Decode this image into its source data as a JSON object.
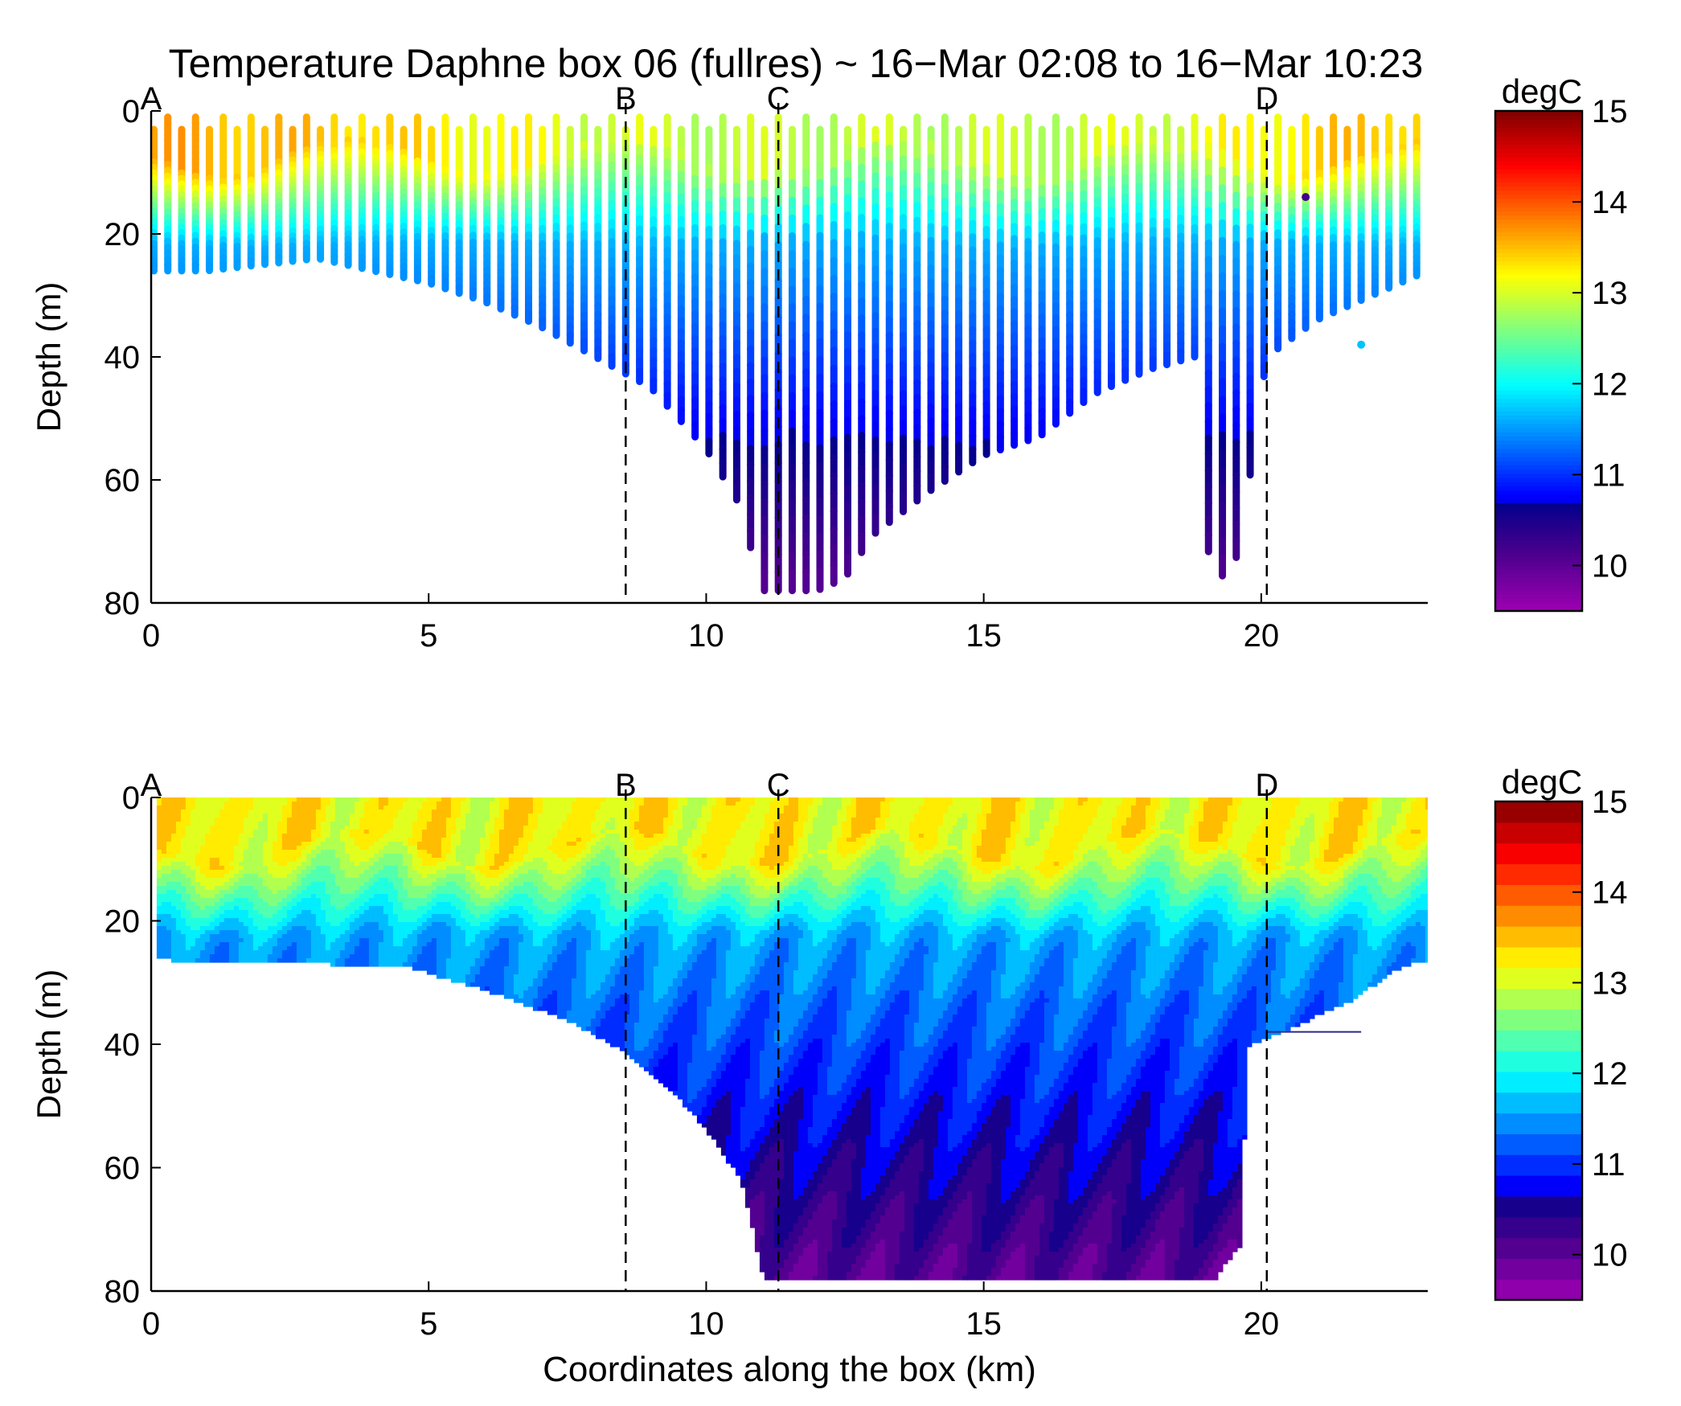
{
  "title": "Temperature Daphne box 06 (fullres) ~ 16−Mar 02:08 to 16−Mar 10:23",
  "chart_data": [
    {
      "type": "heatmap",
      "variant": "scatter-transect",
      "xlabel": "",
      "ylabel": "Depth (m)",
      "xlim": [
        0,
        23
      ],
      "ylim": [
        80,
        0
      ],
      "xticks": [
        0,
        5,
        10,
        15,
        20
      ],
      "yticks": [
        0,
        20,
        40,
        60,
        80
      ],
      "colorbar": {
        "label": "degC",
        "range": [
          9.5,
          15
        ],
        "ticks": [
          10,
          11,
          12,
          13,
          14,
          15
        ],
        "colormap": "jet",
        "levels": "continuous"
      },
      "markers": [
        {
          "label": "A",
          "x": 0
        },
        {
          "label": "B",
          "x": 8.55
        },
        {
          "label": "C",
          "x": 11.3
        },
        {
          "label": "D",
          "x": 20.1
        }
      ],
      "mixed_layer_temp": [
        {
          "x": 0,
          "t": 13.6
        },
        {
          "x": 2,
          "t": 13.5
        },
        {
          "x": 4,
          "t": 13.4
        },
        {
          "x": 6,
          "t": 13.2
        },
        {
          "x": 8,
          "t": 13.0
        },
        {
          "x": 10,
          "t": 12.9
        },
        {
          "x": 12,
          "t": 12.9
        },
        {
          "x": 14,
          "t": 12.9
        },
        {
          "x": 16,
          "t": 12.9
        },
        {
          "x": 18,
          "t": 13.0
        },
        {
          "x": 20,
          "t": 13.2
        },
        {
          "x": 21,
          "t": 13.4
        },
        {
          "x": 23,
          "t": 13.5
        }
      ],
      "profiles_bottom_depth": [
        {
          "x": 0.1,
          "depth": 26
        },
        {
          "x": 1,
          "depth": 26
        },
        {
          "x": 2,
          "depth": 25
        },
        {
          "x": 3,
          "depth": 24
        },
        {
          "x": 4,
          "depth": 26
        },
        {
          "x": 5,
          "depth": 28
        },
        {
          "x": 6,
          "depth": 31
        },
        {
          "x": 7,
          "depth": 35
        },
        {
          "x": 8,
          "depth": 40
        },
        {
          "x": 9,
          "depth": 45
        },
        {
          "x": 10,
          "depth": 55
        },
        {
          "x": 10.6,
          "depth": 64
        },
        {
          "x": 11,
          "depth": 78
        },
        {
          "x": 11.5,
          "depth": 78
        },
        {
          "x": 12,
          "depth": 78
        },
        {
          "x": 12.5,
          "depth": 76
        },
        {
          "x": 13,
          "depth": 69
        },
        {
          "x": 14,
          "depth": 62
        },
        {
          "x": 15,
          "depth": 56
        },
        {
          "x": 16,
          "depth": 53
        },
        {
          "x": 17,
          "depth": 46
        },
        {
          "x": 18,
          "depth": 42
        },
        {
          "x": 18.8,
          "depth": 40
        },
        {
          "x": 19.1,
          "depth": 78
        },
        {
          "x": 19.6,
          "depth": 72
        },
        {
          "x": 20.1,
          "depth": 40
        },
        {
          "x": 21,
          "depth": 34
        },
        {
          "x": 22,
          "depth": 30
        },
        {
          "x": 23,
          "depth": 26
        }
      ],
      "isolated_points": [
        {
          "x": 21.8,
          "depth": 38,
          "t": 11.7
        },
        {
          "x": 20.8,
          "depth": 14,
          "t": 10.2
        }
      ]
    },
    {
      "type": "heatmap",
      "variant": "filled-contour",
      "xlabel": "Coordinates along the box (km)",
      "ylabel": "Depth (m)",
      "xlim": [
        0,
        23
      ],
      "ylim": [
        80,
        0
      ],
      "xticks": [
        0,
        5,
        10,
        15,
        20
      ],
      "yticks": [
        0,
        20,
        40,
        60,
        80
      ],
      "colorbar": {
        "label": "degC",
        "range": [
          9.5,
          15
        ],
        "ticks": [
          10,
          11,
          12,
          13,
          14,
          15
        ],
        "colormap": "jet",
        "levels": 24
      },
      "markers": [
        {
          "label": "A",
          "x": 0
        },
        {
          "label": "B",
          "x": 8.55
        },
        {
          "label": "C",
          "x": 11.3
        },
        {
          "label": "D",
          "x": 20.1
        }
      ],
      "bottom_boundary": [
        {
          "x": 0.1,
          "depth": 26
        },
        {
          "x": 4.5,
          "depth": 27
        },
        {
          "x": 6,
          "depth": 31
        },
        {
          "x": 7.5,
          "depth": 36
        },
        {
          "x": 8.5,
          "depth": 41
        },
        {
          "x": 9.3,
          "depth": 47
        },
        {
          "x": 10,
          "depth": 54
        },
        {
          "x": 10.6,
          "depth": 62
        },
        {
          "x": 11,
          "depth": 78
        },
        {
          "x": 19.1,
          "depth": 78
        },
        {
          "x": 19.6,
          "depth": 72
        },
        {
          "x": 19.7,
          "depth": 40
        },
        {
          "x": 20.5,
          "depth": 37
        },
        {
          "x": 21.5,
          "depth": 33
        },
        {
          "x": 22.5,
          "depth": 27
        },
        {
          "x": 23,
          "depth": 26
        }
      ],
      "reference_line": {
        "x": [
          20.1,
          21.8
        ],
        "depth": 38
      }
    }
  ]
}
